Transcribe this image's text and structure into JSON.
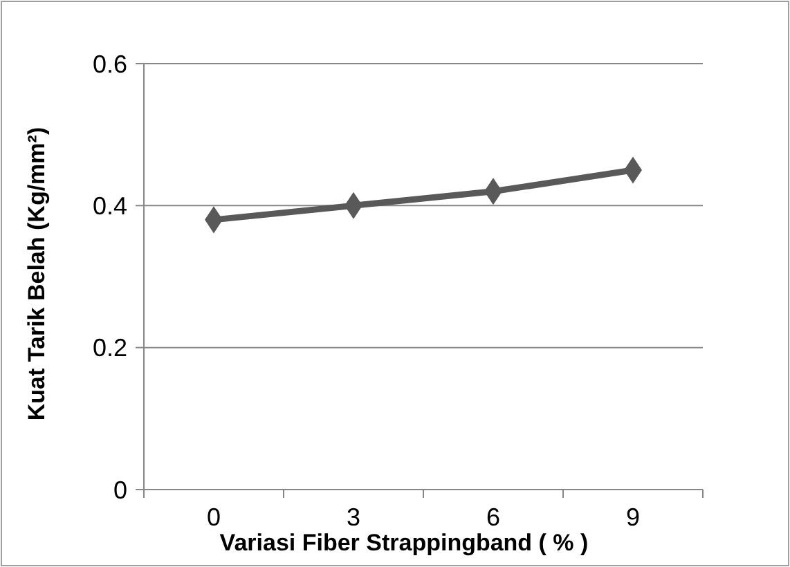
{
  "chart_data": {
    "type": "line",
    "xlabel": "Variasi Fiber Strappingband ( % )",
    "ylabel": "Kuat Tarik Belah (Kg/mm²)",
    "categories": [
      "0",
      "3",
      "6",
      "9"
    ],
    "series": [
      {
        "color": "#595959",
        "values": [
          0.38,
          0.4,
          0.42,
          0.45
        ]
      }
    ],
    "ylim": [
      0,
      0.6
    ],
    "yticks": [
      0,
      {
        "value": 0.2,
        "label": "0.2"
      },
      {
        "value": 0.4,
        "label": "0.4"
      },
      {
        "value": 0.6,
        "label": "0.6"
      }
    ],
    "grid": "y",
    "marker": "diamond",
    "line_style": "solid"
  }
}
